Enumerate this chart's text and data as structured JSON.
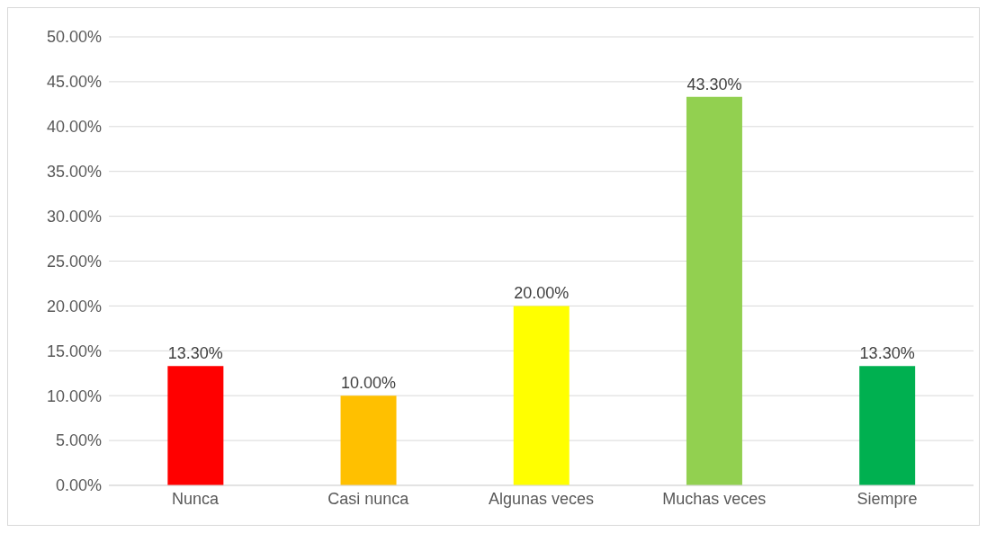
{
  "chart_data": {
    "type": "bar",
    "categories": [
      "Nunca",
      "Casi nunca",
      "Algunas veces",
      "Muchas veces",
      "Siempre"
    ],
    "values": [
      13.3,
      10.0,
      20.0,
      43.3,
      13.3
    ],
    "colors": [
      "#ff0000",
      "#ffc000",
      "#ffff00",
      "#92d050",
      "#00b050"
    ],
    "value_labels": [
      "13.30%",
      "10.00%",
      "20.00%",
      "43.30%",
      "13.30%"
    ],
    "ylim": [
      0,
      50
    ],
    "yticks": [
      {
        "value": 0,
        "label": "0.00%"
      },
      {
        "value": 5,
        "label": "5.00%"
      },
      {
        "value": 10,
        "label": "10.00%"
      },
      {
        "value": 15,
        "label": "15.00%"
      },
      {
        "value": 20,
        "label": "20.00%"
      },
      {
        "value": 25,
        "label": "25.00%"
      },
      {
        "value": 30,
        "label": "30.00%"
      },
      {
        "value": 35,
        "label": "35.00%"
      },
      {
        "value": 40,
        "label": "40.00%"
      },
      {
        "value": 45,
        "label": "45.00%"
      },
      {
        "value": 50,
        "label": "50.00%"
      }
    ],
    "grid": "y",
    "legend": false
  }
}
